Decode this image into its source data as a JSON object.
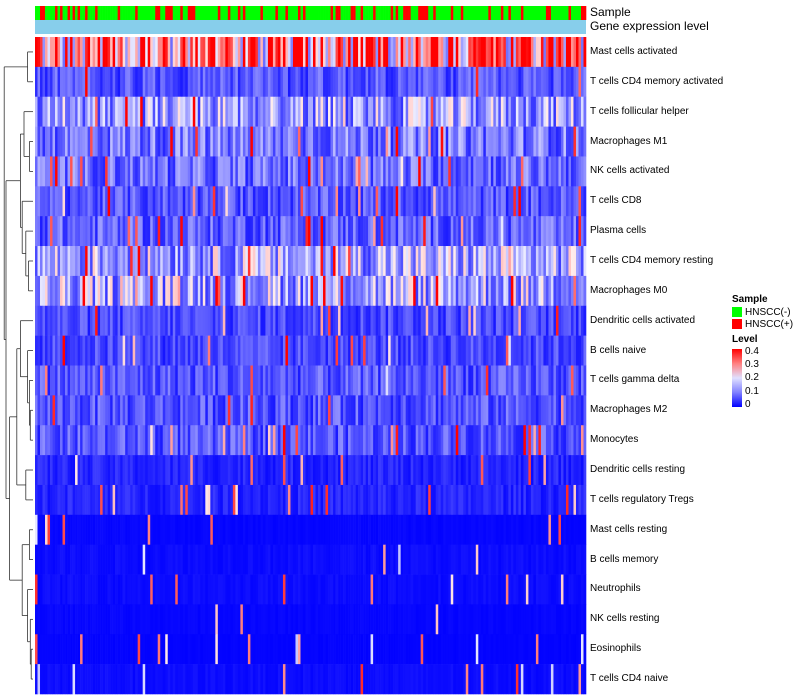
{
  "chart_data": {
    "type": "heatmap",
    "title": "",
    "column_annotations": [
      "Sample",
      "Gene expression level"
    ],
    "rows": [
      {
        "label": "Mast cells activated",
        "mean": 0.3
      },
      {
        "label": "T cells CD4 memory activated",
        "mean": 0.07
      },
      {
        "label": "T cells follicular helper",
        "mean": 0.13
      },
      {
        "label": "Macrophages M1",
        "mean": 0.1
      },
      {
        "label": "NK cells activated",
        "mean": 0.09
      },
      {
        "label": "T cells CD8",
        "mean": 0.07
      },
      {
        "label": "Plasma cells",
        "mean": 0.08
      },
      {
        "label": "T cells CD4 memory resting",
        "mean": 0.14
      },
      {
        "label": "Macrophages M0",
        "mean": 0.14
      },
      {
        "label": "Dendritic cells activated",
        "mean": 0.06
      },
      {
        "label": "B cells naive",
        "mean": 0.06
      },
      {
        "label": "T cells gamma delta",
        "mean": 0.07
      },
      {
        "label": "Macrophages M2",
        "mean": 0.07
      },
      {
        "label": "Monocytes",
        "mean": 0.07
      },
      {
        "label": "Dendritic cells resting",
        "mean": 0.03
      },
      {
        "label": "T cells regulatory  Tregs",
        "mean": 0.03
      },
      {
        "label": "Mast cells resting",
        "mean": 0.005
      },
      {
        "label": "B cells memory",
        "mean": 0.01
      },
      {
        "label": "Neutrophils",
        "mean": 0.01
      },
      {
        "label": "NK cells resting",
        "mean": 0.005
      },
      {
        "label": "Eosinophils",
        "mean": 0.003
      },
      {
        "label": "T cells CD4 naive",
        "mean": 0.01
      }
    ],
    "sample_fraction_positive": 0.3,
    "colorscale": {
      "min": 0,
      "max": 0.4,
      "ticks": [
        "0.4",
        "0.3",
        "0.2",
        "0.1",
        "0"
      ]
    }
  },
  "legend": {
    "sample_title": "Sample",
    "sample_items": [
      {
        "label": "HNSCC(-)",
        "color": "#00ff00"
      },
      {
        "label": "HNSCC(+)",
        "color": "#ff0000"
      }
    ],
    "level_title": "Level"
  },
  "colors": {
    "low": "#0000ff",
    "mid": "#e0e0ff",
    "high": "#ff0000",
    "annotation_level": "#87ceeb"
  }
}
